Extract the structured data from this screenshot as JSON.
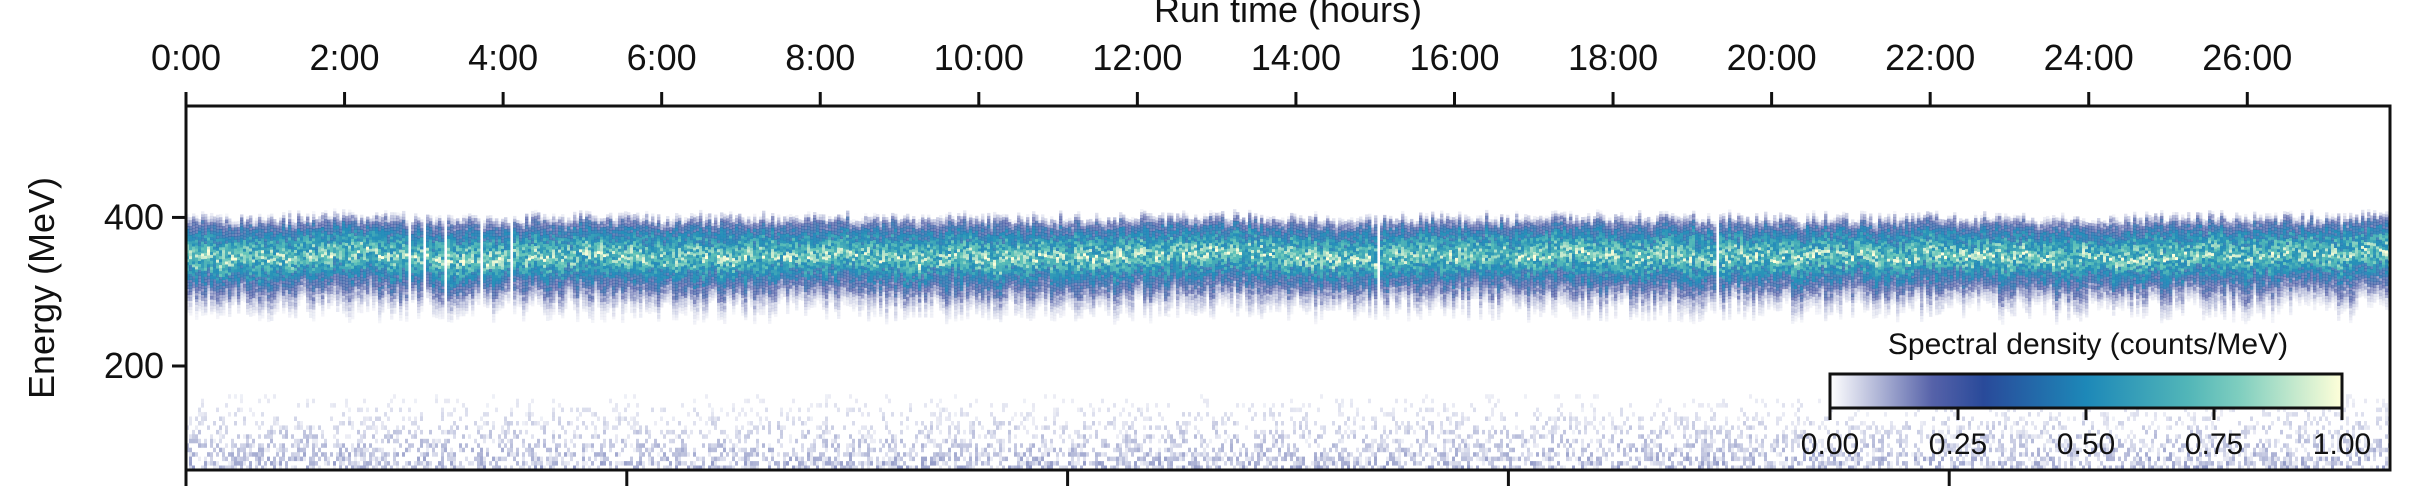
{
  "chart_data": {
    "type": "heatmap",
    "title": "",
    "xlabel": "Run time (hours)",
    "ylabel": "Energy (MeV)",
    "x_ticks": [
      "0:00",
      "2:00",
      "4:00",
      "6:00",
      "8:00",
      "10:00",
      "12:00",
      "14:00",
      "16:00",
      "18:00",
      "20:00",
      "22:00",
      "24:00",
      "26:00"
    ],
    "x_tick_hours": [
      0,
      2,
      4,
      6,
      8,
      10,
      12,
      14,
      16,
      18,
      20,
      22,
      24,
      26
    ],
    "xlim_hours": [
      0,
      27.8
    ],
    "y_ticks": [
      "200",
      "400"
    ],
    "y_tick_values": [
      200,
      400
    ],
    "ylim": [
      60,
      550
    ],
    "band": {
      "center_mev": 345,
      "upper_edge_mev": 400,
      "lower_edge_mev": 260,
      "peak_density": 1.0
    },
    "low_energy_noise": {
      "range_mev": [
        60,
        160
      ]
    },
    "colorbar": {
      "label": "Spectral density (counts/MeV)",
      "ticks": [
        "0.00",
        "0.25",
        "0.50",
        "0.75",
        "1.00"
      ],
      "tick_values": [
        0.0,
        0.25,
        0.5,
        0.75,
        1.0
      ],
      "range": [
        0,
        1
      ],
      "placement": "lower-right inside",
      "colormap": "YlGnBu"
    },
    "colors": [
      "#ffffff",
      "#2c3b93",
      "#1d88b8",
      "#5fc2b8",
      "#ffffd9"
    ],
    "grid": false
  }
}
